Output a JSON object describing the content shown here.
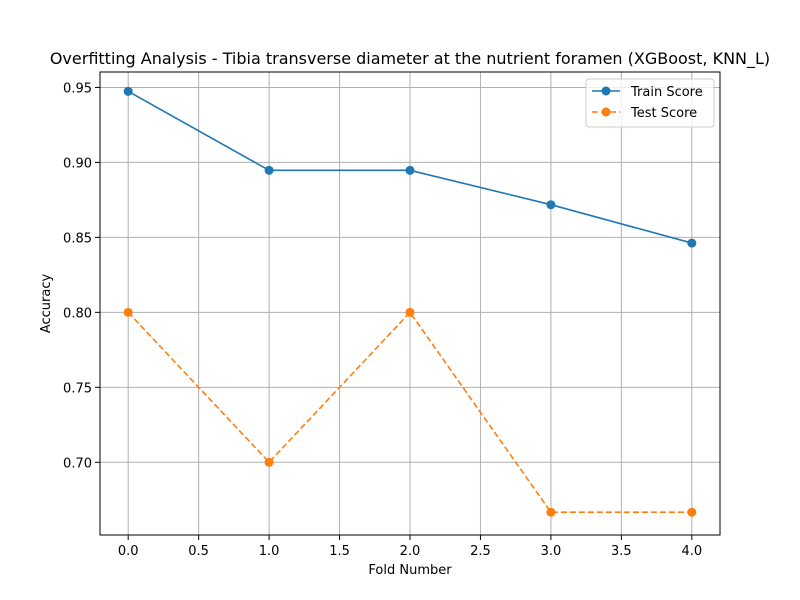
{
  "chart_data": {
    "type": "line",
    "title": "Overfitting Analysis - Tibia transverse diameter at the nutrient foramen (XGBoost, KNN_L)",
    "xlabel": "Fold Number",
    "ylabel": "Accuracy",
    "x": [
      0,
      1,
      2,
      3,
      4
    ],
    "xlim": [
      -0.2,
      4.2
    ],
    "ylim": [
      0.6515,
      0.9603
    ],
    "xticks": [
      "0.0",
      "0.5",
      "1.0",
      "1.5",
      "2.0",
      "2.5",
      "3.0",
      "3.5",
      "4.0"
    ],
    "yticks": [
      "0.70",
      "0.75",
      "0.80",
      "0.85",
      "0.90",
      "0.95"
    ],
    "grid": true,
    "legend_position": "top-right",
    "series": [
      {
        "name": "Train Score",
        "values": [
          0.9474,
          0.8947,
          0.8947,
          0.8718,
          0.8462
        ],
        "color": "#1f77b4",
        "line_style": "solid",
        "marker": "circle"
      },
      {
        "name": "Test Score",
        "values": [
          0.8,
          0.7,
          0.8,
          0.6667,
          0.6667
        ],
        "color": "#ff7f0e",
        "line_style": "dashed",
        "marker": "circle"
      }
    ]
  }
}
